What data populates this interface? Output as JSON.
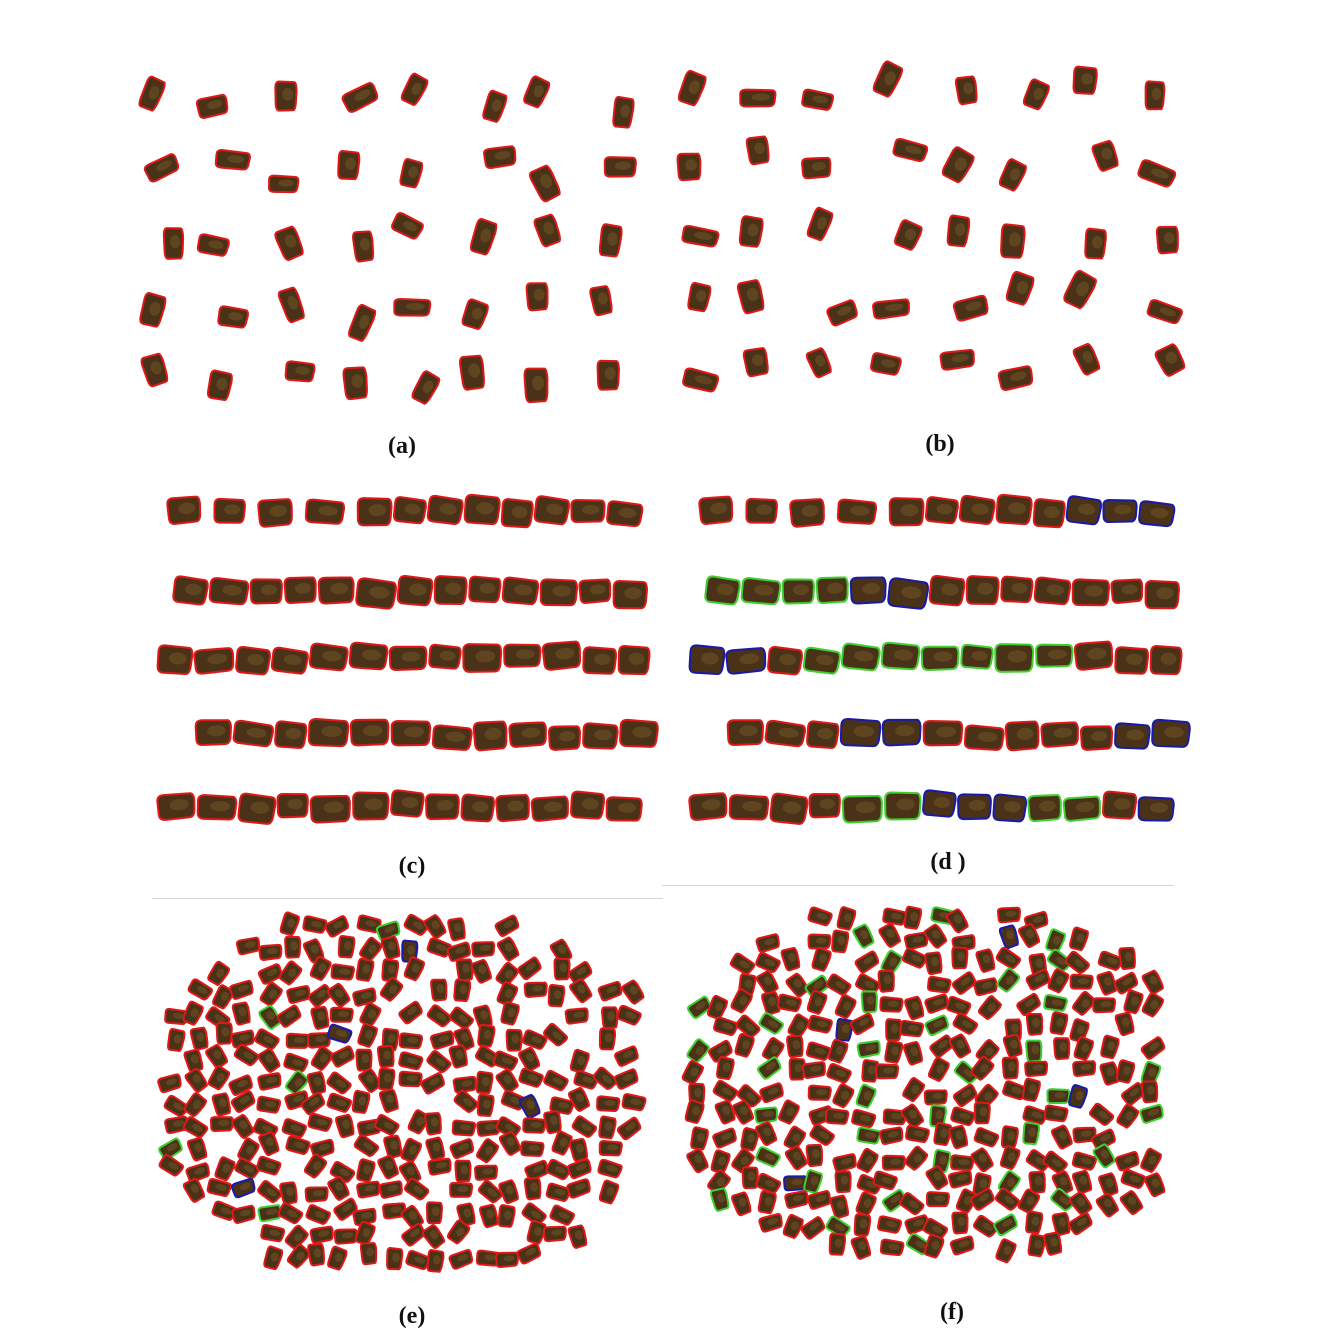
{
  "figure": {
    "panels": [
      {
        "id": "a",
        "caption": "(a)",
        "layout": "scatter",
        "count": 40,
        "seed": 11,
        "clusters": [],
        "green": []
      },
      {
        "id": "b",
        "caption": "(b)",
        "layout": "scatter",
        "count": 40,
        "seed": 23,
        "clusters": [],
        "green": []
      },
      {
        "id": "c",
        "caption": "(c)",
        "layout": "rows",
        "seed": 37,
        "clusters": [],
        "green": []
      },
      {
        "id": "d",
        "caption": "(d )",
        "layout": "rows",
        "seed": 37,
        "clusters": [
          [
            0,
            9,
            10,
            11
          ],
          [
            1,
            4,
            5
          ],
          [
            2,
            0,
            1
          ],
          [
            3,
            3,
            4
          ],
          [
            3,
            10,
            11
          ],
          [
            4,
            6,
            7,
            8
          ],
          [
            4,
            12,
            13
          ]
        ],
        "green": [
          [
            0,
            12
          ],
          [
            1,
            0
          ],
          [
            1,
            1
          ],
          [
            1,
            2
          ],
          [
            1,
            3
          ],
          [
            2,
            3
          ],
          [
            2,
            4
          ],
          [
            2,
            5
          ],
          [
            2,
            6
          ],
          [
            2,
            7
          ],
          [
            2,
            8
          ],
          [
            2,
            9
          ],
          [
            3,
            12
          ],
          [
            3,
            13
          ],
          [
            4,
            4
          ],
          [
            4,
            5
          ],
          [
            4,
            9
          ],
          [
            4,
            10
          ]
        ]
      },
      {
        "id": "e",
        "caption": "(e)",
        "layout": "dense",
        "seed": 53,
        "blueCount": 5,
        "greenCount": 6
      },
      {
        "id": "f",
        "caption": "(f)",
        "layout": "dense",
        "seed": 71,
        "blueCount": 4,
        "greenCount": 42
      }
    ],
    "colors": {
      "seed_fill": "#4a3218",
      "seed_highlight": "#7a5a2a",
      "outline_single": "#e01818",
      "outline_split": "#3fcf2f",
      "outline_cluster": "#1a1aa8",
      "background": "#ffffff"
    }
  }
}
